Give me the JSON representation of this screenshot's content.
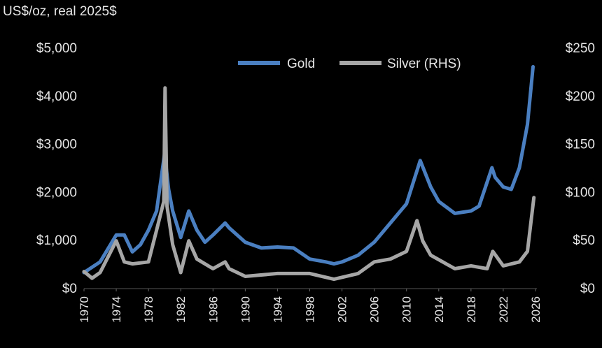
{
  "chart_data": {
    "type": "line",
    "title": "US$/oz, real 2025$",
    "xlim": [
      1970,
      2026
    ],
    "x_ticks": [
      "1970",
      "1974",
      "1978",
      "1982",
      "1986",
      "1990",
      "1994",
      "1998",
      "2002",
      "2006",
      "2010",
      "2014",
      "2018",
      "2022",
      "2026"
    ],
    "y_left": {
      "lim": [
        0,
        5000
      ],
      "ticks": [
        "$0",
        "$1,000",
        "$2,000",
        "$3,000",
        "$4,000",
        "$5,000"
      ]
    },
    "y_right": {
      "lim": [
        0,
        250
      ],
      "ticks": [
        "$0",
        "$50",
        "$100",
        "$150",
        "$200",
        "$250"
      ]
    },
    "legend_placement": "top-center",
    "grid": false,
    "series": [
      {
        "name": "Gold",
        "axis": "left",
        "color": "#4a7fc1",
        "x": [
          1970,
          1972,
          1974,
          1975,
          1976,
          1977,
          1978,
          1979,
          1980.0,
          1980.5,
          1981,
          1982,
          1983,
          1984,
          1985,
          1986,
          1987.5,
          1988,
          1990,
          1992,
          1994,
          1996,
          1998,
          2000,
          2001,
          2002,
          2004,
          2006,
          2008,
          2010,
          2011.7,
          2013,
          2014,
          2016,
          2018,
          2019,
          2020.6,
          2021,
          2022,
          2023,
          2024,
          2025,
          2025.7
        ],
        "values": [
          320,
          540,
          1100,
          1100,
          750,
          900,
          1200,
          1600,
          2800,
          2050,
          1600,
          1050,
          1600,
          1200,
          950,
          1100,
          1350,
          1250,
          950,
          830,
          850,
          830,
          600,
          540,
          500,
          540,
          680,
          950,
          1350,
          1750,
          2650,
          2100,
          1800,
          1550,
          1600,
          1700,
          2500,
          2300,
          2100,
          2050,
          2500,
          3400,
          4600
        ]
      },
      {
        "name": "Silver (RHS)",
        "axis": "right",
        "color": "#a6a6a6",
        "x": [
          1970,
          1971,
          1972,
          1974,
          1975,
          1976,
          1978,
          1979,
          1979.9,
          1980.05,
          1980.3,
          1981,
          1982,
          1983,
          1984,
          1986,
          1987.5,
          1988,
          1990,
          1994,
          1998,
          2001,
          2004,
          2006,
          2008,
          2010,
          2011.3,
          2012,
          2013,
          2016,
          2018,
          2020,
          2020.7,
          2022,
          2024,
          2025,
          2025.8
        ],
        "values": [
          17,
          10,
          16,
          49,
          27,
          25,
          27,
          60,
          90,
          208,
          85,
          45,
          16,
          49,
          30,
          20,
          27,
          20,
          12,
          15,
          15,
          9,
          15,
          27,
          30,
          38,
          70,
          49,
          34,
          20,
          23,
          20,
          38,
          23,
          27,
          38,
          94
        ]
      }
    ]
  }
}
